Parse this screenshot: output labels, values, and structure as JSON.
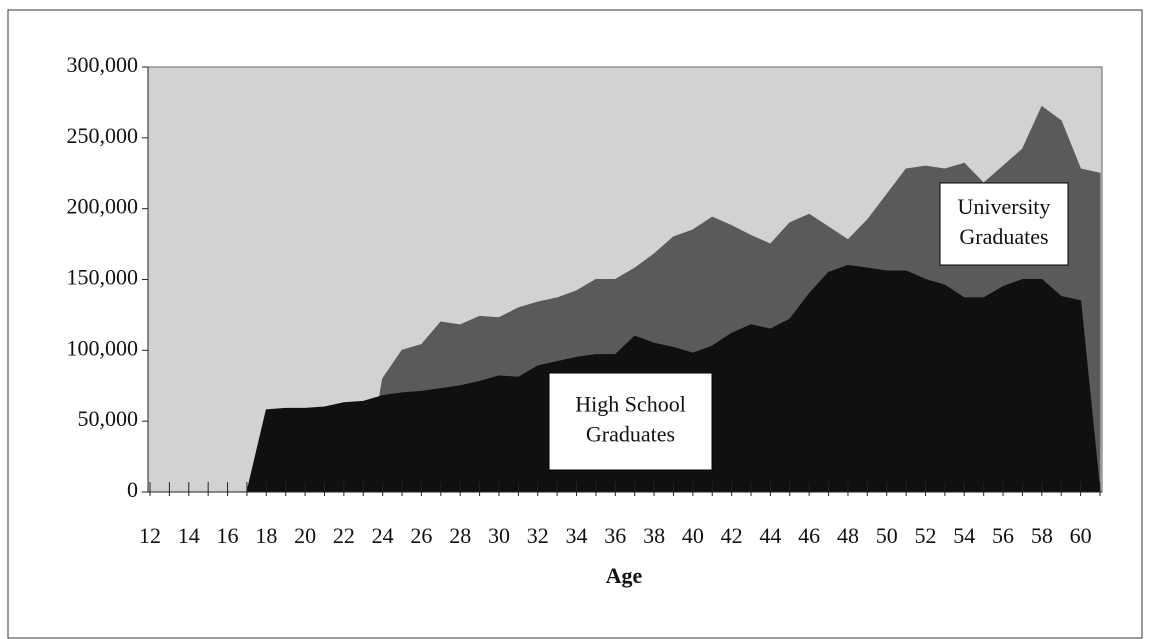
{
  "chart_data": {
    "type": "area",
    "x_label": "Age",
    "categories": [
      12,
      null,
      14,
      null,
      16,
      null,
      18,
      null,
      20,
      null,
      22,
      null,
      24,
      null,
      26,
      null,
      28,
      null,
      30,
      null,
      32,
      null,
      34,
      null,
      36,
      null,
      38,
      null,
      40,
      null,
      42,
      null,
      44,
      null,
      46,
      null,
      48,
      null,
      50,
      null,
      52,
      null,
      54,
      null,
      56,
      null,
      58,
      null,
      60,
      null
    ],
    "series": [
      {
        "color": "#5a5a5a",
        "values": [
          0,
          0,
          0,
          0,
          0,
          0,
          0,
          0,
          0,
          0,
          0,
          0,
          80000,
          100000,
          104000,
          120000,
          118000,
          124000,
          123000,
          130000,
          134000,
          137000,
          142000,
          150000,
          150000,
          158000,
          168000,
          180000,
          185000,
          194000,
          188000,
          181000,
          175000,
          190000,
          196000,
          187000,
          178000,
          192000,
          210000,
          228000,
          230000,
          228000,
          232000,
          218000,
          230000,
          242000,
          272000,
          262000,
          228000,
          225000
        ]
      },
      {
        "color": "#101010",
        "values": [
          0,
          0,
          0,
          0,
          0,
          0,
          58000,
          59000,
          59000,
          60000,
          63000,
          64000,
          68000,
          70000,
          71000,
          73000,
          75000,
          78000,
          82000,
          81000,
          89000,
          92000,
          95000,
          97000,
          97000,
          110000,
          105000,
          102000,
          98000,
          103000,
          112000,
          118000,
          115000,
          122000,
          140000,
          155000,
          160000,
          158000,
          156000,
          156000,
          150000,
          146000,
          137000,
          137000,
          145000,
          150000,
          150000,
          138000,
          135000,
          0
        ]
      }
    ],
    "annotations": [
      {
        "lines": [
          "University",
          "Graduates"
        ]
      },
      {
        "lines": [
          "High School",
          "Graduates"
        ]
      }
    ],
    "ylim": [
      0,
      300000
    ],
    "yticks": [
      0,
      {
        "value": 50000,
        "label": "50,000"
      },
      {
        "value": 100000,
        "label": "100,000"
      },
      {
        "value": 150000,
        "label": "150,000"
      },
      {
        "value": 200000,
        "label": "200,000"
      },
      {
        "value": 250000,
        "label": "250,000"
      },
      {
        "value": 300000,
        "label": "300,000"
      }
    ],
    "plot_background": "#d2d2d2"
  }
}
